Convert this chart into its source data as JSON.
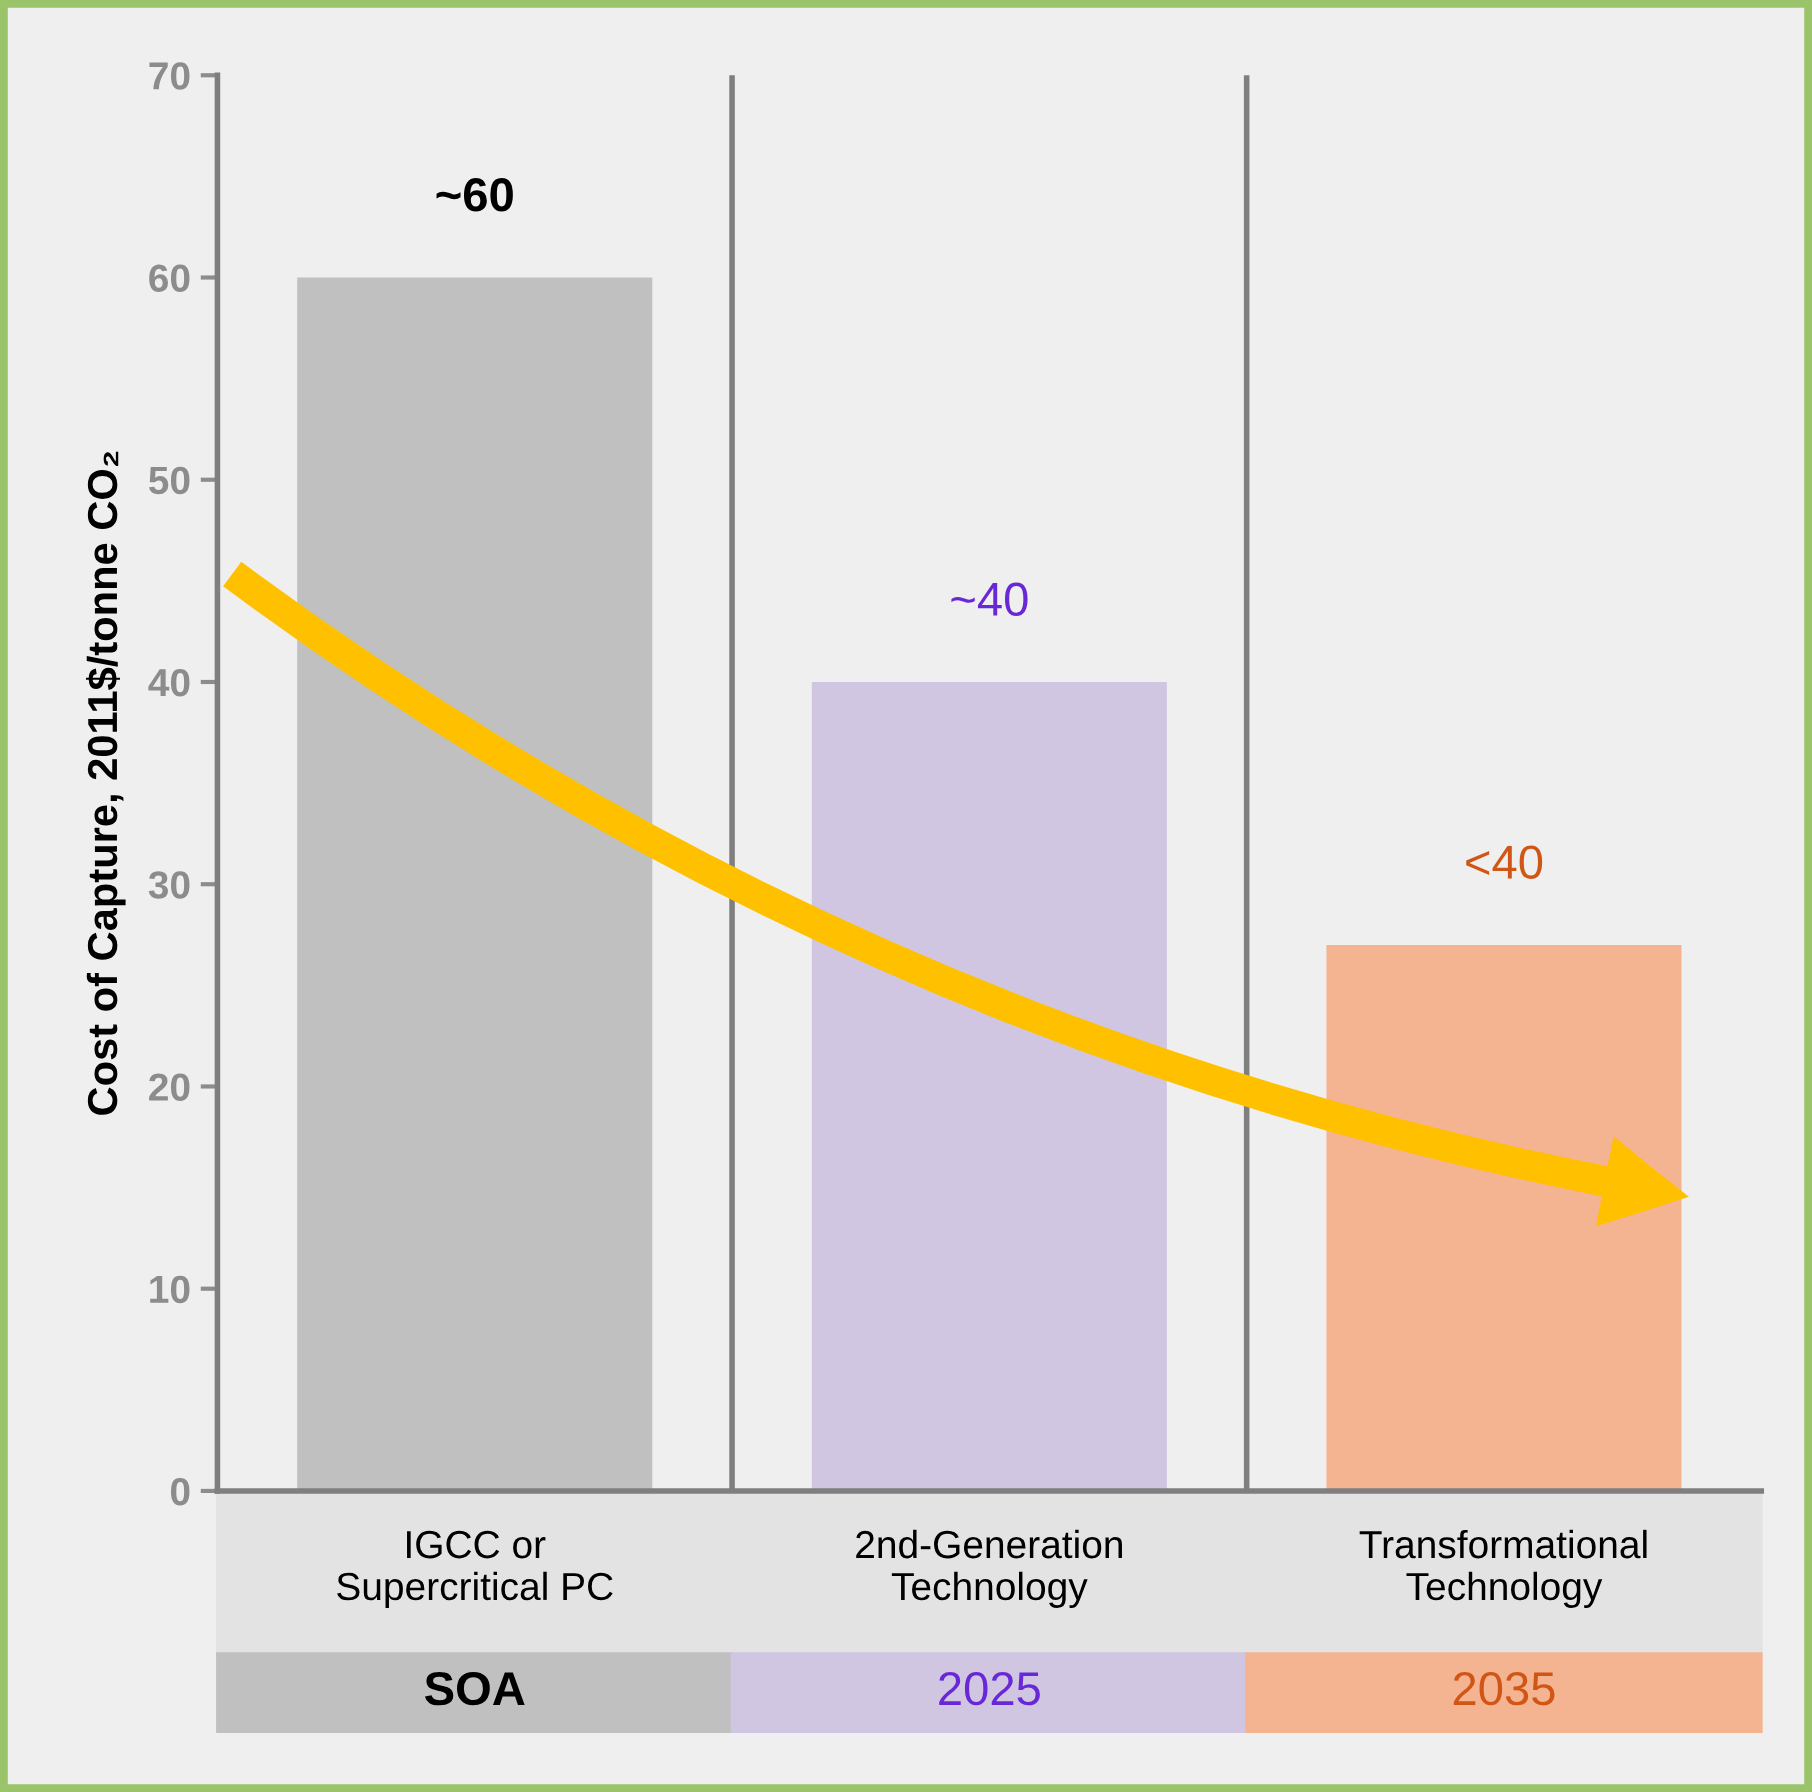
{
  "chart_data": {
    "type": "bar",
    "ylabel": "Cost of Capture, 2011$/tonne CO₂",
    "categories": [
      "IGCC or\nSupercritical PC",
      "2nd-Generation\nTechnology",
      "Transformational\nTechnology"
    ],
    "values": [
      60,
      40,
      27
    ],
    "colors": [
      "#c0c0c0",
      "#d0c6e1",
      "#f4b391"
    ],
    "value_labels": [
      "~60",
      "~40",
      "<40"
    ],
    "annotations": [
      "SOA",
      "2025",
      "2035"
    ],
    "ylim": [
      0,
      70
    ],
    "yticks": [
      0,
      10,
      20,
      30,
      40,
      50,
      60,
      70
    ],
    "grid": "x"
  }
}
